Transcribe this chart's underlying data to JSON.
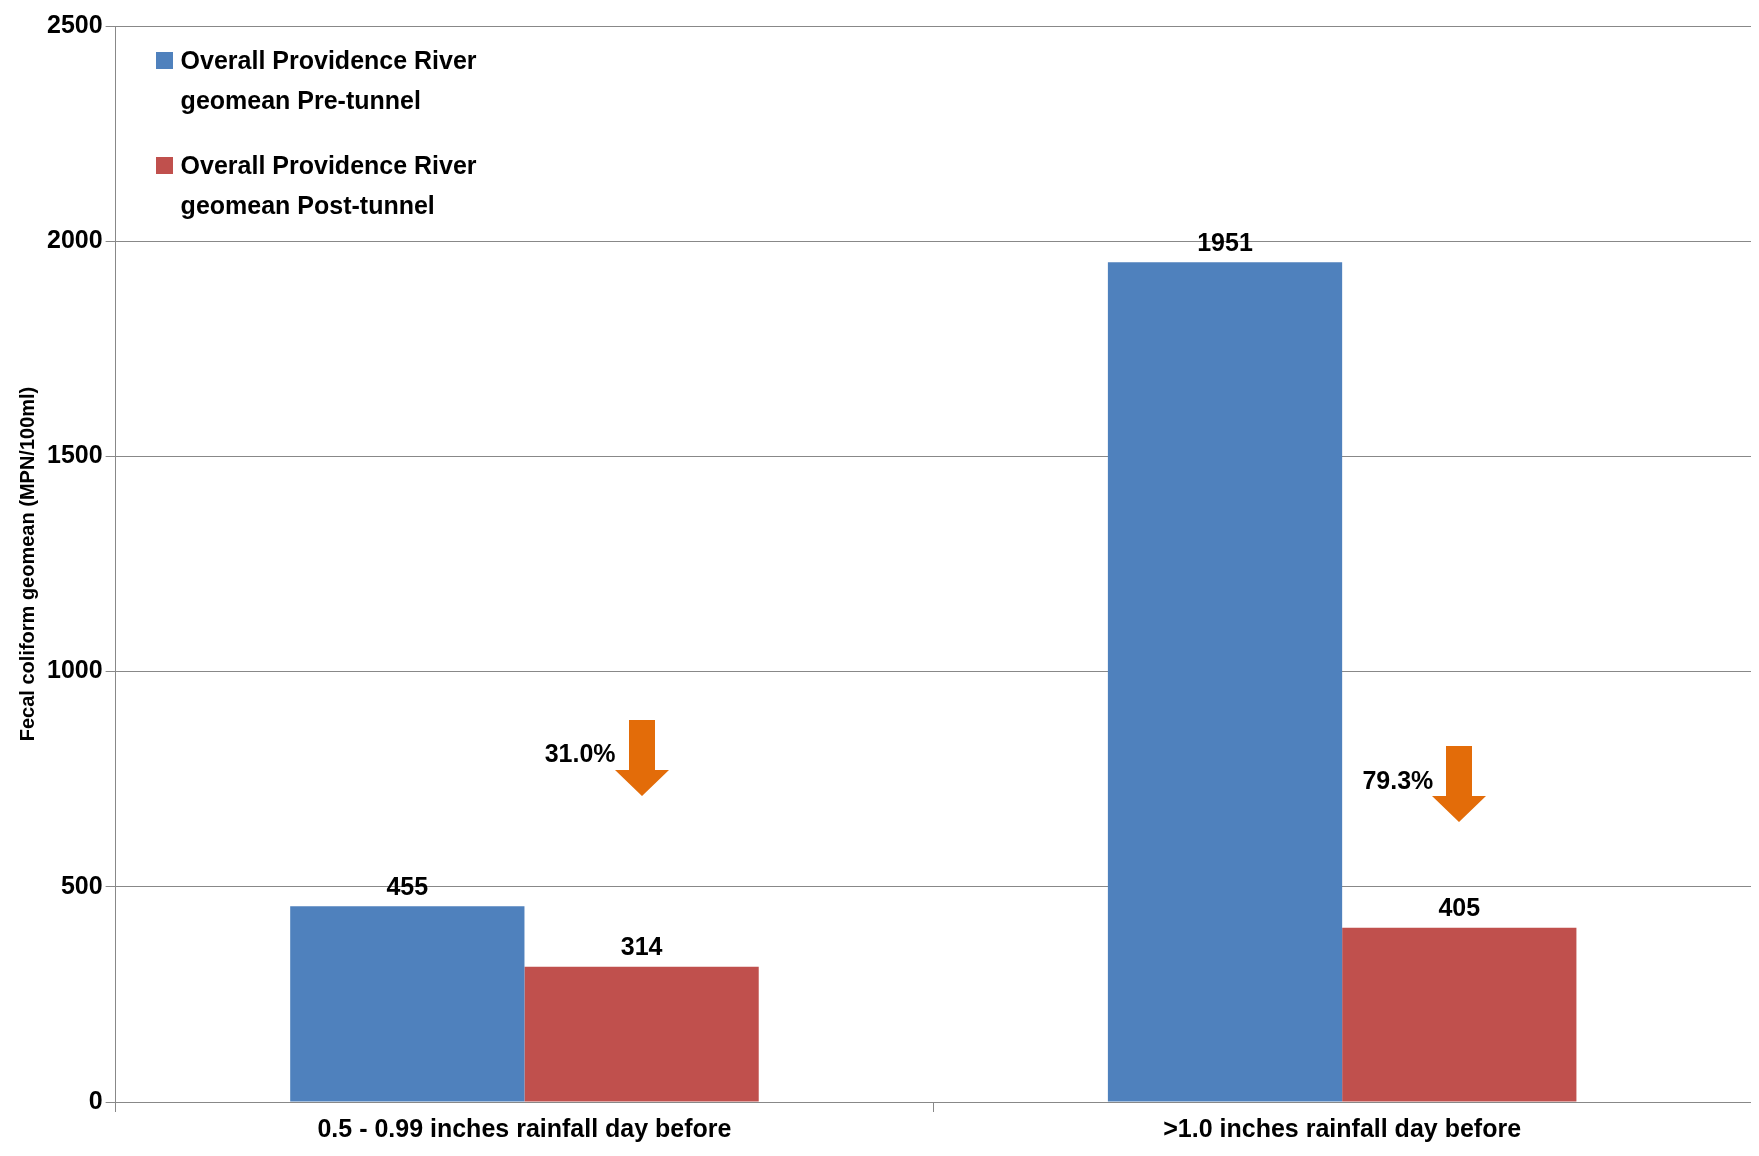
{
  "chart_data": {
    "type": "bar",
    "ylabel": "Fecal coliform geomean (MPN/100ml)",
    "categories": [
      "0.5 - 0.99 inches rainfall day before",
      ">1.0 inches rainfall day before"
    ],
    "series": [
      {
        "name": "Overall Providence River geomean Pre-tunnel",
        "color": "#4f81bd",
        "values": [
          455,
          1951
        ]
      },
      {
        "name": "Overall Providence River geomean Post-tunnel",
        "color": "#c0504d",
        "values": [
          314,
          405
        ]
      }
    ],
    "ylim": [
      0,
      2500
    ],
    "yticks": [
      0,
      500,
      1000,
      1500,
      2000,
      2500
    ],
    "grid": "y",
    "legend": "top left",
    "data_labels": true,
    "annotations": [
      "31.0%",
      "79.3%"
    ]
  }
}
